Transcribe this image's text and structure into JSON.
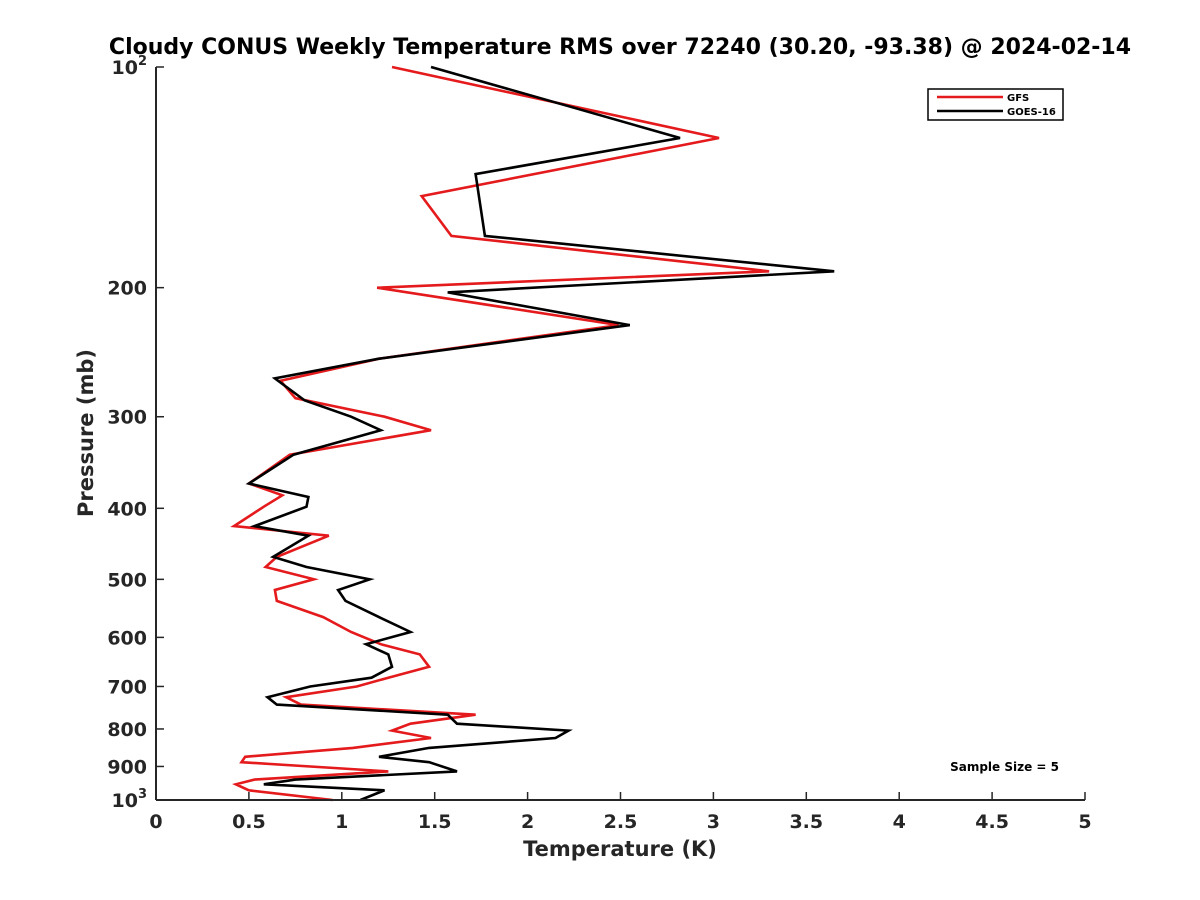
{
  "chart_data": {
    "type": "line",
    "title": "Cloudy CONUS Weekly Temperature RMS over 72240 (30.20, -93.38) @ 2024-02-14",
    "xlabel": "Temperature (K)",
    "ylabel": "Pressure (mb)",
    "xlim": [
      0,
      5
    ],
    "ylim": [
      100,
      1000
    ],
    "y_scale": "log",
    "y_reversed": true,
    "x_ticks": [
      "0",
      "0.5",
      "1",
      "1.5",
      "2",
      "2.5",
      "3",
      "3.5",
      "4",
      "4.5",
      "5"
    ],
    "y_ticks": [
      {
        "value": 100,
        "base": "10",
        "exp": "2"
      },
      {
        "value": 200,
        "label": "200"
      },
      {
        "value": 300,
        "label": "300"
      },
      {
        "value": 400,
        "label": "400"
      },
      {
        "value": 500,
        "label": "500"
      },
      {
        "value": 600,
        "label": "600"
      },
      {
        "value": 700,
        "label": "700"
      },
      {
        "value": 800,
        "label": "800"
      },
      {
        "value": 900,
        "label": "900"
      },
      {
        "value": 1000,
        "base": "10",
        "exp": "3"
      }
    ],
    "grid": false,
    "legend_position": "top-right",
    "annotation": "Sample Size = 5",
    "series": [
      {
        "name": "GFS",
        "color": "#e41a1c",
        "points": [
          [
            1.27,
            100
          ],
          [
            3.03,
            125
          ],
          [
            1.43,
            150
          ],
          [
            1.59,
            170
          ],
          [
            3.3,
            190
          ],
          [
            1.19,
            200
          ],
          [
            2.49,
            225
          ],
          [
            1.2,
            250
          ],
          [
            0.67,
            268
          ],
          [
            0.75,
            283
          ],
          [
            1.23,
            300
          ],
          [
            1.48,
            313
          ],
          [
            0.72,
            338
          ],
          [
            0.5,
            370
          ],
          [
            0.68,
            384
          ],
          [
            0.58,
            398
          ],
          [
            0.42,
            423
          ],
          [
            0.93,
            436
          ],
          [
            0.65,
            466
          ],
          [
            0.59,
            481
          ],
          [
            0.85,
            500
          ],
          [
            0.64,
            517
          ],
          [
            0.65,
            535
          ],
          [
            0.9,
            563
          ],
          [
            1.05,
            590
          ],
          [
            1.21,
            613
          ],
          [
            1.42,
            633
          ],
          [
            1.47,
            658
          ],
          [
            1.25,
            681
          ],
          [
            1.08,
            700
          ],
          [
            0.7,
            724
          ],
          [
            0.78,
            741
          ],
          [
            1.72,
            765
          ],
          [
            1.37,
            787
          ],
          [
            1.27,
            804
          ],
          [
            1.48,
            823
          ],
          [
            1.06,
            849
          ],
          [
            0.48,
            873
          ],
          [
            0.46,
            888
          ],
          [
            1.25,
            914
          ],
          [
            0.53,
            938
          ],
          [
            0.43,
            952
          ],
          [
            0.5,
            970
          ],
          [
            0.95,
            1000
          ]
        ]
      },
      {
        "name": "GOES-16",
        "color": "#000000",
        "points": [
          [
            1.48,
            100
          ],
          [
            2.82,
            125
          ],
          [
            1.72,
            140
          ],
          [
            1.77,
            170
          ],
          [
            3.65,
            190
          ],
          [
            1.57,
            203
          ],
          [
            2.55,
            225
          ],
          [
            1.2,
            250
          ],
          [
            0.64,
            266
          ],
          [
            0.8,
            285
          ],
          [
            1.05,
            300
          ],
          [
            1.21,
            313
          ],
          [
            0.74,
            338
          ],
          [
            0.5,
            370
          ],
          [
            0.82,
            386
          ],
          [
            0.81,
            398
          ],
          [
            0.53,
            423
          ],
          [
            0.82,
            436
          ],
          [
            0.63,
            466
          ],
          [
            0.81,
            481
          ],
          [
            1.15,
            500
          ],
          [
            0.98,
            517
          ],
          [
            1.02,
            535
          ],
          [
            1.2,
            563
          ],
          [
            1.37,
            590
          ],
          [
            1.13,
            613
          ],
          [
            1.25,
            633
          ],
          [
            1.27,
            658
          ],
          [
            1.16,
            681
          ],
          [
            0.83,
            700
          ],
          [
            0.6,
            724
          ],
          [
            0.65,
            741
          ],
          [
            1.57,
            765
          ],
          [
            1.62,
            787
          ],
          [
            2.22,
            804
          ],
          [
            2.15,
            823
          ],
          [
            1.47,
            849
          ],
          [
            1.2,
            873
          ],
          [
            1.47,
            888
          ],
          [
            1.62,
            914
          ],
          [
            0.75,
            938
          ],
          [
            0.58,
            952
          ],
          [
            1.23,
            970
          ],
          [
            1.1,
            1000
          ]
        ]
      }
    ]
  }
}
